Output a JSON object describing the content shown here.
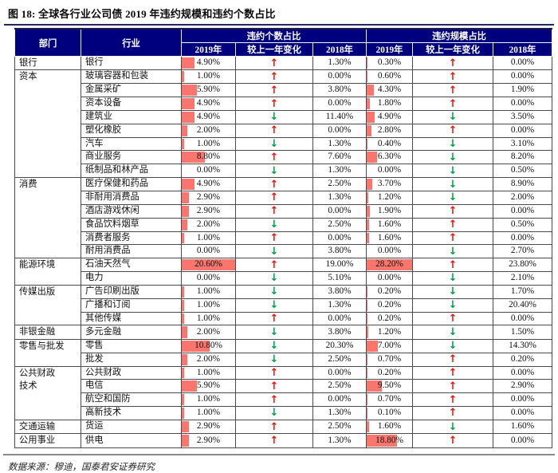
{
  "title": "图 18:  全球各行业公司债 2019 年违约规模和违约个数占比",
  "source": "数据来源：穆迪，国泰君安证券研究",
  "table": {
    "header": {
      "sector": "部门",
      "industry": "行业",
      "count_group": "违约个数占比",
      "scale_group": "违约规模占比",
      "col_2019": "2019年",
      "col_change": "较上一年变化",
      "col_2018": "2018年"
    },
    "arrows": {
      "up": "↑",
      "down": "↓"
    },
    "colors": {
      "header_bg": "#00007f",
      "bar": "#f8766d",
      "up": "#e8140c",
      "down": "#00a14b",
      "title_rule": "#26265e"
    },
    "bar_max": {
      "count": 20.6,
      "scale": 28.2
    },
    "groups": [
      {
        "sector": "银行",
        "rows": [
          {
            "industry": "银行",
            "c2019": "4.90%",
            "c_chg": "up",
            "c2018": "1.30%",
            "s2019": "0.30%",
            "s_chg": "up",
            "s2018": "0.00%"
          }
        ]
      },
      {
        "sector": "资本",
        "rows": [
          {
            "industry": "玻璃容器和包装",
            "c2019": "1.00%",
            "c_chg": "up",
            "c2018": "0.00%",
            "s2019": "0.60%",
            "s_chg": "up",
            "s2018": "0.00%"
          },
          {
            "industry": "金属采矿",
            "c2019": "5.90%",
            "c_chg": "up",
            "c2018": "3.80%",
            "s2019": "4.30%",
            "s_chg": "up",
            "s2018": "1.90%"
          },
          {
            "industry": "资本设备",
            "c2019": "4.90%",
            "c_chg": "up",
            "c2018": "0.00%",
            "s2019": "1.80%",
            "s_chg": "up",
            "s2018": "0.00%"
          },
          {
            "industry": "建筑业",
            "c2019": "4.90%",
            "c_chg": "down",
            "c2018": "11.40%",
            "s2019": "4.90%",
            "s_chg": "down",
            "s2018": "3.50%"
          },
          {
            "industry": "塑化橡胶",
            "c2019": "2.00%",
            "c_chg": "up",
            "c2018": "0.00%",
            "s2019": "2.80%",
            "s_chg": "up",
            "s2018": "0.00%"
          },
          {
            "industry": "汽车",
            "c2019": "1.00%",
            "c_chg": "down",
            "c2018": "1.30%",
            "s2019": "0.40%",
            "s_chg": "down",
            "s2018": "3.10%"
          },
          {
            "industry": "商业服务",
            "c2019": "8.80%",
            "c_chg": "up",
            "c2018": "7.60%",
            "s2019": "6.30%",
            "s_chg": "down",
            "s2018": "8.20%"
          },
          {
            "industry": "纸制品和林产品",
            "c2019": "0.00%",
            "c_chg": "down",
            "c2018": "1.30%",
            "s2019": "0.00%",
            "s_chg": "down",
            "s2018": "0.50%"
          }
        ]
      },
      {
        "sector": "消费",
        "rows": [
          {
            "industry": "医疗保健和药品",
            "c2019": "4.90%",
            "c_chg": "up",
            "c2018": "2.50%",
            "s2019": "3.70%",
            "s_chg": "down",
            "s2018": "8.90%"
          },
          {
            "industry": "非耐用消费品",
            "c2019": "2.90%",
            "c_chg": "up",
            "c2018": "1.30%",
            "s2019": "1.20%",
            "s_chg": "down",
            "s2018": "2.00%"
          },
          {
            "industry": "酒店游戏休闲",
            "c2019": "2.90%",
            "c_chg": "up",
            "c2018": "0.00%",
            "s2019": "1.90%",
            "s_chg": "up",
            "s2018": "0.00%"
          },
          {
            "industry": "食品饮料烟草",
            "c2019": "2.00%",
            "c_chg": "down",
            "c2018": "2.50%",
            "s2019": "1.60%",
            "s_chg": "up",
            "s2018": "0.50%"
          },
          {
            "industry": "消费者服务",
            "c2019": "1.00%",
            "c_chg": "up",
            "c2018": "0.00%",
            "s2019": "1.60%",
            "s_chg": "up",
            "s2018": "0.00%"
          },
          {
            "industry": "耐用消费品",
            "c2019": "0.00%",
            "c_chg": "down",
            "c2018": "3.80%",
            "s2019": "0.00%",
            "s_chg": "down",
            "s2018": "2.70%"
          }
        ]
      },
      {
        "sector": "能源环境",
        "rows": [
          {
            "industry": "石油天然气",
            "c2019": "20.60%",
            "c_chg": "up",
            "c2018": "19.00%",
            "s2019": "28.20%",
            "s_chg": "up",
            "s2018": "23.80%"
          },
          {
            "industry": "电力",
            "c2019": "0.00%",
            "c_chg": "down",
            "c2018": "5.10%",
            "s2019": "0.00%",
            "s_chg": "down",
            "s2018": "2.10%"
          }
        ]
      },
      {
        "sector": "传媒出版",
        "rows": [
          {
            "industry": "广告印刷出版",
            "c2019": "1.00%",
            "c_chg": "down",
            "c2018": "3.80%",
            "s2019": "0.20%",
            "s_chg": "down",
            "s2018": "1.70%"
          },
          {
            "industry": "广播和订阅",
            "c2019": "1.00%",
            "c_chg": "down",
            "c2018": "1.30%",
            "s2019": "0.20%",
            "s_chg": "down",
            "s2018": "20.40%"
          },
          {
            "industry": "其他传媒",
            "c2019": "1.00%",
            "c_chg": "up",
            "c2018": "0.00%",
            "s2019": "0.20%",
            "s_chg": "up",
            "s2018": "0.00%"
          }
        ]
      },
      {
        "sector": "非银金融",
        "rows": [
          {
            "industry": "多元金融",
            "c2019": "2.00%",
            "c_chg": "down",
            "c2018": "3.80%",
            "s2019": "1.20%",
            "s_chg": "down",
            "s2018": "1.50%"
          }
        ]
      },
      {
        "sector": "零售与批发",
        "rows": [
          {
            "industry": "零售",
            "c2019": "10.80%",
            "c_chg": "down",
            "c2018": "20.30%",
            "s2019": "7.00%",
            "s_chg": "down",
            "s2018": "14.30%"
          },
          {
            "industry": "批发",
            "c2019": "2.00%",
            "c_chg": "down",
            "c2018": "2.50%",
            "s2019": "0.70%",
            "s_chg": "up",
            "s2018": "0.20%"
          }
        ]
      },
      {
        "sector": "公共财政\n技术",
        "rows": [
          {
            "industry": "公共财政",
            "c2019": "1.00%",
            "c_chg": "up",
            "c2018": "0.00%",
            "s2019": "0.20%",
            "s_chg": "up",
            "s2018": "0.00%"
          },
          {
            "industry": "电信",
            "c2019": "5.90%",
            "c_chg": "up",
            "c2018": "2.50%",
            "s2019": "9.50%",
            "s_chg": "up",
            "s2018": "2.90%"
          },
          {
            "industry": "航空和国防",
            "c2019": "1.00%",
            "c_chg": "up",
            "c2018": "0.00%",
            "s2019": "0.70%",
            "s_chg": "up",
            "s2018": "0.00%"
          },
          {
            "industry": "高新技术",
            "c2019": "1.00%",
            "c_chg": "down",
            "c2018": "1.30%",
            "s2019": "0.10%",
            "s_chg": "up",
            "s2018": "0.00%"
          }
        ]
      },
      {
        "sector": "交通运输",
        "rows": [
          {
            "industry": "货运",
            "c2019": "2.90%",
            "c_chg": "up",
            "c2018": "2.50%",
            "s2019": "1.60%",
            "s_chg": "down",
            "s2018": "1.60%"
          }
        ]
      },
      {
        "sector": "公用事业",
        "rows": [
          {
            "industry": "供电",
            "c2019": "2.90%",
            "c_chg": "up",
            "c2018": "1.30%",
            "s2019": "18.80%",
            "s_chg": "up",
            "s2018": "0.00%"
          }
        ]
      }
    ]
  }
}
